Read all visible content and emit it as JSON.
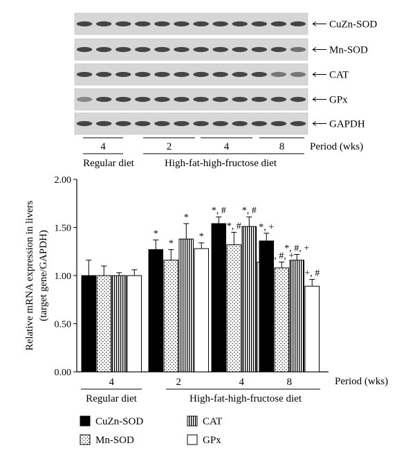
{
  "blot": {
    "rows": [
      {
        "label": "CuZn-SOD"
      },
      {
        "label": "Mn-SOD"
      },
      {
        "label": "CAT"
      },
      {
        "label": "GPx"
      },
      {
        "label": "GAPDH"
      }
    ],
    "lanes": 12,
    "period_label": "Period (wks)",
    "groups": [
      {
        "period": "4",
        "lanes": 3
      },
      {
        "period": "2",
        "lanes": 3
      },
      {
        "period": "4",
        "lanes": 3
      },
      {
        "period": "8",
        "lanes": 3
      }
    ],
    "diet_labels": [
      "Regular diet",
      "High-fat-high-fructose diet"
    ]
  },
  "chart_data": {
    "type": "bar",
    "ylabel_line1": "Relative mRNA expression in livers",
    "ylabel_line2": "(target gene/GAPDH)",
    "ylim": [
      0,
      2
    ],
    "yticks": [
      "0.00",
      "0.50",
      "1.00",
      "1.50",
      "2.00"
    ],
    "xlabel": "Period (wks)",
    "categories": [
      "4",
      "2",
      "4",
      "8"
    ],
    "diet_labels": [
      "Regular diet",
      "High-fat-high-fructose diet"
    ],
    "series": [
      {
        "name": "CuZn-SOD",
        "pattern": "solid",
        "values": [
          1.0,
          1.27,
          1.54,
          1.36
        ],
        "errors": [
          0.16,
          0.1,
          0.07,
          0.08
        ],
        "annotations": [
          "",
          "*",
          "*, #",
          "*, +"
        ]
      },
      {
        "name": "Mn-SOD",
        "pattern": "dots",
        "values": [
          1.0,
          1.16,
          1.32,
          1.08
        ],
        "errors": [
          0.1,
          0.11,
          0.13,
          0.06
        ],
        "annotations": [
          "",
          "*",
          "*, #",
          "*, #, +"
        ]
      },
      {
        "name": "CAT",
        "pattern": "vlines",
        "values": [
          1.0,
          1.38,
          1.51,
          1.16
        ],
        "errors": [
          0.03,
          0.16,
          0.1,
          0.06
        ],
        "annotations": [
          "",
          "*",
          "*, #",
          "*, #, +"
        ]
      },
      {
        "name": "GPx",
        "pattern": "white",
        "values": [
          1.0,
          1.28,
          1.14,
          0.89
        ],
        "errors": [
          0.06,
          0.06,
          0.04,
          0.07
        ],
        "annotations": [
          "",
          "*",
          "*",
          "+, #"
        ]
      }
    ],
    "legend_placement": "bottom-left"
  }
}
